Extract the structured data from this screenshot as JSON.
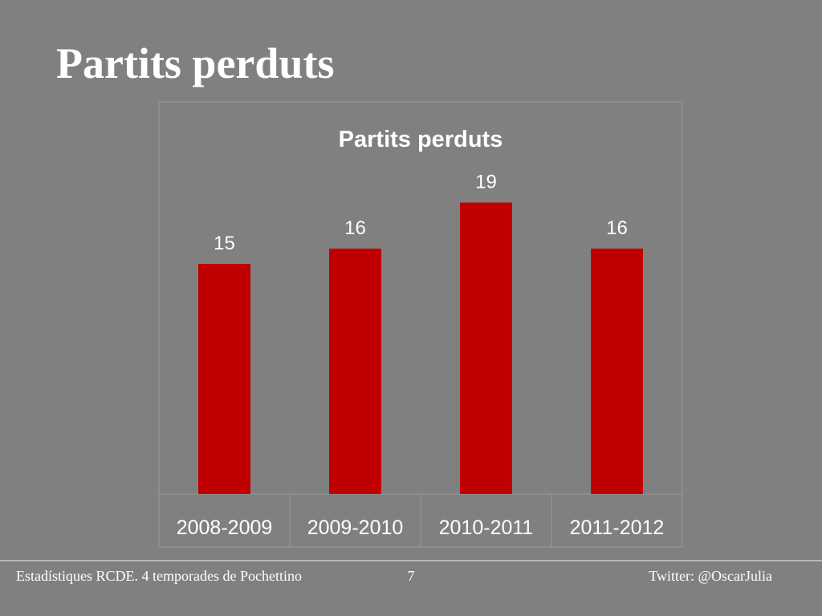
{
  "slide": {
    "title": "Partits perduts",
    "footer": {
      "left": "Estadístiques RCDE. 4 temporades de Pochettino",
      "page": "7",
      "right": "Twitter: @OscarJulia"
    }
  },
  "chart_data": {
    "type": "bar",
    "title": "Partits perduts",
    "categories": [
      "2008-2009",
      "2009-2010",
      "2010-2011",
      "2011-2012"
    ],
    "values": [
      15,
      16,
      19,
      16
    ],
    "color": "#c00000"
  }
}
